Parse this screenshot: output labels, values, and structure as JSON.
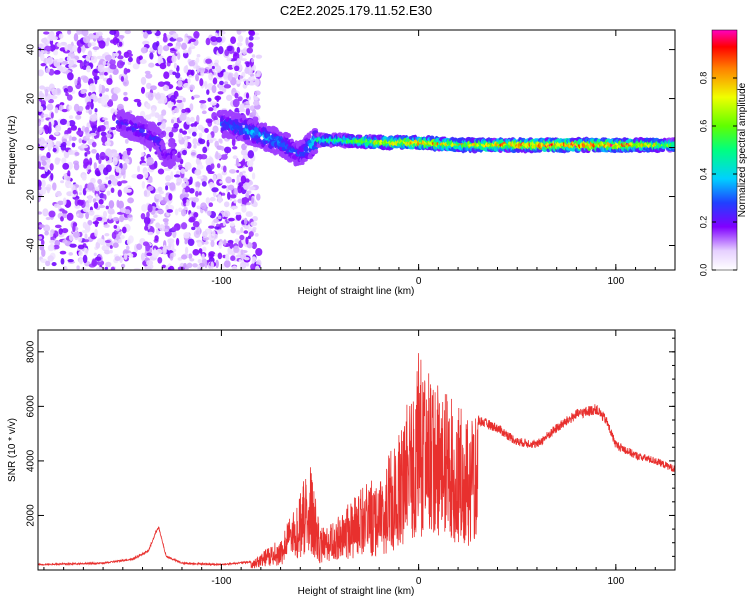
{
  "title": "C2E2.2025.179.11.52.E30",
  "chart_data": [
    {
      "type": "heatmap",
      "xlabel": "Height of straight line (km)",
      "ylabel": "Frequency (Hz)",
      "xlim": [
        -193,
        130
      ],
      "ylim": [
        -50,
        48
      ],
      "x_ticks": [
        -100,
        0,
        100
      ],
      "y_ticks": [
        -40,
        -20,
        0,
        20,
        40
      ],
      "colorbar": {
        "label": "Normalized spectral amplitude",
        "range": [
          0,
          1
        ],
        "ticks": [
          "0.0",
          "0.2",
          "0.4",
          "0.6",
          "0.8"
        ]
      },
      "band": {
        "x": [
          -150,
          -140,
          -132,
          -128,
          -100,
          -90,
          -80,
          -70,
          -60,
          -52,
          -40,
          -20,
          0,
          20,
          60,
          100,
          130
        ],
        "center_freq": [
          10,
          7,
          3,
          -4,
          10,
          8,
          5,
          2,
          -3,
          3,
          3,
          2,
          2,
          1,
          1,
          1,
          1
        ],
        "peak_amplitude": [
          0.25,
          0.3,
          0.25,
          0.2,
          0.3,
          0.35,
          0.4,
          0.35,
          0.3,
          0.5,
          0.55,
          0.75,
          0.9,
          0.8,
          0.95,
          1.0,
          0.6
        ]
      }
    },
    {
      "type": "line",
      "xlabel": "Height of straight line (km)",
      "ylabel": "SNR (10 * v/v)",
      "xlim": [
        -193,
        130
      ],
      "ylim": [
        0,
        8800
      ],
      "x_ticks": [
        -100,
        0,
        100
      ],
      "y_ticks": [
        2000,
        4000,
        6000,
        8000
      ],
      "color": "#e8302e",
      "envelope": {
        "x": [
          -193,
          -160,
          -145,
          -137,
          -132,
          -128,
          -120,
          -100,
          -85,
          -80,
          -70,
          -62,
          -55,
          -50,
          -40,
          -30,
          -20,
          -10,
          0,
          5,
          10,
          20,
          30,
          40,
          50,
          60,
          70,
          80,
          90,
          95,
          100,
          110,
          120,
          130
        ],
        "y": [
          200,
          250,
          400,
          700,
          1600,
          500,
          250,
          200,
          300,
          600,
          1200,
          2500,
          4000,
          1500,
          2000,
          3000,
          3500,
          5000,
          8000,
          7500,
          7000,
          6000,
          5500,
          5200,
          4700,
          4600,
          5200,
          5700,
          5900,
          5500,
          4600,
          4200,
          4000,
          3700
        ]
      }
    }
  ]
}
